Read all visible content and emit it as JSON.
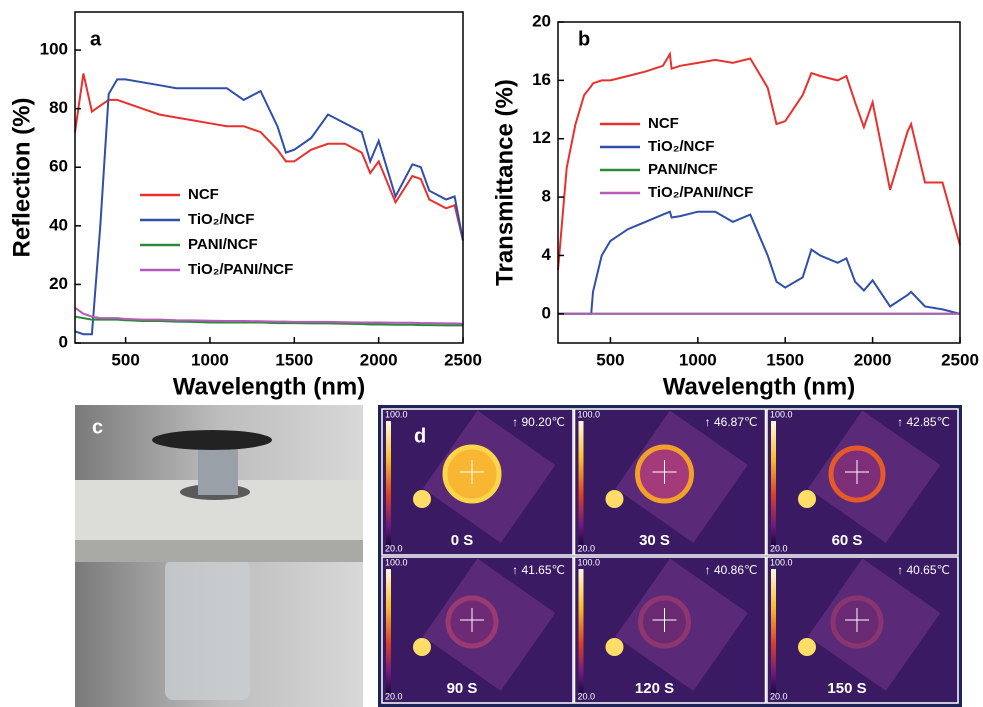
{
  "chart_data": [
    {
      "type": "line",
      "panel_label": "a",
      "x_label": "Wavelength (nm)",
      "y_label": "Reflection (%)",
      "x": [
        200,
        250,
        300,
        350,
        400,
        450,
        500,
        600,
        700,
        800,
        900,
        1000,
        1100,
        1200,
        1300,
        1400,
        1450,
        1500,
        1600,
        1700,
        1800,
        1900,
        1950,
        2000,
        2100,
        2200,
        2250,
        2300,
        2400,
        2450,
        2500
      ],
      "series": [
        {
          "name": "NCF",
          "color": "#e8312f",
          "values": [
            72,
            92,
            79,
            81,
            83,
            83,
            82,
            80,
            78,
            77,
            76,
            75,
            74,
            74,
            72,
            66,
            62,
            62,
            66,
            68,
            68,
            65,
            58,
            62,
            48,
            57,
            56,
            49,
            46,
            47,
            35
          ]
        },
        {
          "name": "TiO₂/NCF",
          "color": "#2f4fa8",
          "values": [
            4,
            3,
            3,
            40,
            85,
            90,
            90,
            89,
            88,
            87,
            87,
            87,
            87,
            83,
            86,
            74,
            65,
            66,
            70,
            78,
            75,
            72,
            62,
            69,
            50,
            61,
            60,
            52,
            49,
            50,
            35
          ]
        },
        {
          "name": "PANI/NCF",
          "color": "#2a8a3a",
          "values": [
            9,
            8.5,
            8,
            8,
            8,
            8,
            7.8,
            7.5,
            7.5,
            7.3,
            7.2,
            7,
            7,
            7,
            7,
            6.8,
            6.8,
            6.8,
            6.7,
            6.7,
            6.6,
            6.5,
            6.3,
            6.3,
            6.2,
            6.2,
            6.1,
            6.1,
            6,
            6,
            6
          ]
        },
        {
          "name": "TiO₂/PANI/NCF",
          "color": "#b45ab8",
          "values": [
            12,
            10,
            9,
            8.5,
            8.5,
            8.5,
            8.2,
            8,
            8,
            7.8,
            7.7,
            7.6,
            7.5,
            7.5,
            7.4,
            7.3,
            7.3,
            7.2,
            7.2,
            7.2,
            7.1,
            7,
            7,
            7,
            6.9,
            6.9,
            6.8,
            6.8,
            6.7,
            6.7,
            6.6
          ]
        }
      ],
      "xlim": [
        200,
        2500
      ],
      "xticks": [
        500,
        1000,
        1500,
        2000,
        2500
      ],
      "ylim": [
        0,
        113
      ],
      "yticks": [
        0,
        20,
        40,
        60,
        80,
        100
      ]
    },
    {
      "type": "line",
      "panel_label": "b",
      "x_label": "Wavelength (nm)",
      "y_label": "Transmittance (%)",
      "x": [
        200,
        250,
        300,
        350,
        390,
        400,
        450,
        500,
        600,
        700,
        800,
        840,
        850,
        900,
        1000,
        1100,
        1200,
        1300,
        1400,
        1450,
        1500,
        1600,
        1650,
        1700,
        1800,
        1850,
        1900,
        1950,
        2000,
        2100,
        2200,
        2220,
        2300,
        2400,
        2500
      ],
      "series": [
        {
          "name": "NCF",
          "color": "#e8312f",
          "values": [
            3,
            10,
            13,
            15,
            15.6,
            15.8,
            16,
            16,
            16.3,
            16.6,
            17,
            17.8,
            16.8,
            17,
            17.2,
            17.4,
            17.2,
            17.5,
            15.5,
            13,
            13.2,
            15,
            16.5,
            16.3,
            16,
            16.3,
            14.5,
            12.8,
            14.5,
            8.5,
            12.5,
            13,
            9,
            9,
            4.7
          ]
        },
        {
          "name": "TiO₂/NCF",
          "color": "#2f4fa8",
          "values": [
            0,
            0,
            0,
            0,
            0,
            1.5,
            4,
            5,
            5.8,
            6.3,
            6.8,
            7,
            6.6,
            6.7,
            7,
            7,
            6.3,
            6.8,
            4,
            2.2,
            1.8,
            2.5,
            4.4,
            4,
            3.5,
            3.8,
            2.2,
            1.6,
            2.3,
            0.5,
            1.3,
            1.5,
            0.5,
            0.3,
            0
          ]
        },
        {
          "name": "PANI/NCF",
          "color": "#2a8a3a",
          "values": [
            0,
            0,
            0,
            0,
            0,
            0,
            0,
            0,
            0,
            0,
            0,
            0,
            0,
            0,
            0,
            0,
            0,
            0,
            0,
            0,
            0,
            0,
            0,
            0,
            0,
            0,
            0,
            0,
            0,
            0,
            0,
            0,
            0,
            0,
            0
          ]
        },
        {
          "name": "TiO₂/PANI/NCF",
          "color": "#b45ab8",
          "values": [
            0,
            0,
            0,
            0,
            0,
            0,
            0,
            0,
            0,
            0,
            0,
            0,
            0,
            0,
            0,
            0,
            0,
            0,
            0,
            0,
            0,
            0,
            0,
            0,
            0,
            0,
            0,
            0,
            0,
            0,
            0,
            0,
            0,
            0,
            0
          ]
        }
      ],
      "xlim": [
        200,
        2500
      ],
      "xticks": [
        500,
        1000,
        1500,
        2000,
        2500
      ],
      "ylim": [
        -2,
        20
      ],
      "yticks": [
        0,
        4,
        8,
        12,
        16,
        20
      ]
    }
  ],
  "photo": {
    "panel_label": "c"
  },
  "thermal": {
    "panel_label": "d",
    "images": [
      {
        "max_label": "100.0",
        "min_label": "20.0",
        "temperature": "↑ 90.20℃",
        "time": "0 S"
      },
      {
        "max_label": "100.0",
        "min_label": "20.0",
        "temperature": "↑ 46.87℃",
        "time": "30 S"
      },
      {
        "max_label": "100.0",
        "min_label": "20.0",
        "temperature": "↑ 42.85℃",
        "time": "60 S"
      },
      {
        "max_label": "100.0",
        "min_label": "20.0",
        "temperature": "↑ 41.65℃",
        "time": "90 S"
      },
      {
        "max_label": "100.0",
        "min_label": "20.0",
        "temperature": "↑ 40.86℃",
        "time": "120 S"
      },
      {
        "max_label": "100.0",
        "min_label": "20.0",
        "temperature": "↑ 40.65℃",
        "time": "150 S"
      }
    ]
  }
}
